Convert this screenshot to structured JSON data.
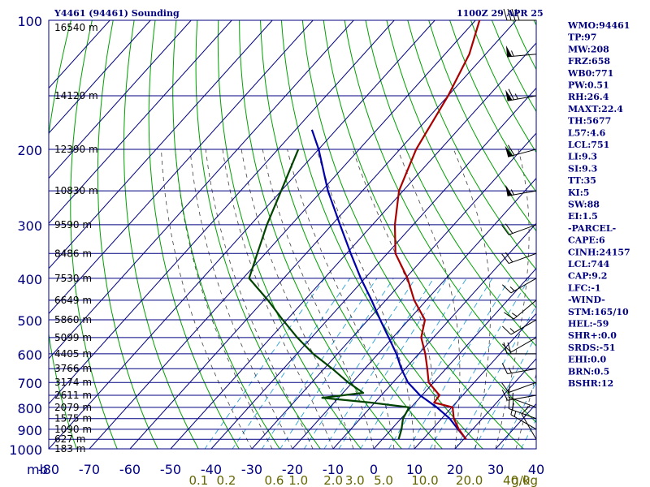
{
  "header": {
    "station": "Y4461 (94461) Sounding",
    "time": "1100Z 29 APR 25"
  },
  "colors": {
    "frame": "#000080",
    "isotherm": "#000080",
    "dry_adiabat": "#00a000",
    "moist_adiabat": "#000000",
    "mixing_ratio": "#2aa0d8",
    "temperature": "#aa0000",
    "dewpoint": "#004400",
    "parcel": "#0000aa",
    "axis_text": "#000080",
    "mixing_text": "#666600"
  },
  "chart_data": {
    "type": "line",
    "title": "Y4461 (94461) Sounding",
    "valid_time": "1100Z 29 APR 25",
    "xlim": [
      -80,
      40
    ],
    "ylim": [
      1000,
      100
    ],
    "x_tick_labels": [
      "-80",
      "-70",
      "-60",
      "-50",
      "-40",
      "-30",
      "-20",
      "-10",
      "0",
      "10",
      "20",
      "30",
      "40"
    ],
    "pressure_ticks": [
      {
        "p": 100,
        "label": "100"
      },
      {
        "p": 200,
        "label": "200"
      },
      {
        "p": 300,
        "label": "300"
      },
      {
        "p": 400,
        "label": "400"
      },
      {
        "p": 500,
        "label": "500"
      },
      {
        "p": 600,
        "label": "600"
      },
      {
        "p": 700,
        "label": "700"
      },
      {
        "p": 800,
        "label": "800"
      },
      {
        "p": 900,
        "label": "900"
      },
      {
        "p": 1000,
        "label": "1000"
      }
    ],
    "pressure_unit": "mb",
    "mixing_ratio_unit": "g/kg",
    "height_labels": [
      {
        "p": 104,
        "label": "16540 m"
      },
      {
        "p": 150,
        "label": "14120 m"
      },
      {
        "p": 200,
        "label": "12390 m"
      },
      {
        "p": 250,
        "label": "10830 m"
      },
      {
        "p": 300,
        "label": "9590 m"
      },
      {
        "p": 350,
        "label": "8486 m"
      },
      {
        "p": 400,
        "label": "7530 m"
      },
      {
        "p": 450,
        "label": "6649 m"
      },
      {
        "p": 500,
        "label": "5860 m"
      },
      {
        "p": 550,
        "label": "5099 m"
      },
      {
        "p": 600,
        "label": "4405 m"
      },
      {
        "p": 650,
        "label": "3766 m"
      },
      {
        "p": 700,
        "label": "3174 m"
      },
      {
        "p": 750,
        "label": "2611 m"
      },
      {
        "p": 800,
        "label": "2079 m"
      },
      {
        "p": 850,
        "label": "1575 m"
      },
      {
        "p": 900,
        "label": "1090 m"
      },
      {
        "p": 950,
        "label": "627 m"
      },
      {
        "p": 1000,
        "label": "183 m"
      }
    ],
    "mixing_ratio_labels": [
      {
        "value": 0.1,
        "label": "0.1"
      },
      {
        "value": 0.2,
        "label": "0.2"
      },
      {
        "value": 0.6,
        "label": "0.6"
      },
      {
        "value": 1.0,
        "label": "1.0"
      },
      {
        "value": 2.0,
        "label": "2.0"
      },
      {
        "value": 3.0,
        "label": "3.0"
      },
      {
        "value": 5.0,
        "label": "5.0"
      },
      {
        "value": 10.0,
        "label": "10.0"
      },
      {
        "value": 20.0,
        "label": "20.0"
      },
      {
        "value": 40.0,
        "label": "40.0"
      }
    ],
    "series": [
      {
        "name": "temperature",
        "points": [
          [
            950,
            20.6
          ],
          [
            900,
            16.6
          ],
          [
            850,
            13.0
          ],
          [
            800,
            10.2
          ],
          [
            780,
            4.6
          ],
          [
            750,
            4.3
          ],
          [
            700,
            -1.2
          ],
          [
            650,
            -4.6
          ],
          [
            600,
            -8.4
          ],
          [
            550,
            -13.0
          ],
          [
            500,
            -16.0
          ],
          [
            450,
            -23.0
          ],
          [
            400,
            -29.5
          ],
          [
            350,
            -38.0
          ],
          [
            300,
            -44.5
          ],
          [
            250,
            -51.0
          ],
          [
            200,
            -56.0
          ],
          [
            150,
            -60.0
          ],
          [
            120,
            -64.0
          ],
          [
            100,
            -69.0
          ]
        ]
      },
      {
        "name": "dewpoint",
        "points": [
          [
            950,
            4.0
          ],
          [
            900,
            2.5
          ],
          [
            850,
            0.5
          ],
          [
            800,
            -0.5
          ],
          [
            780,
            -11.0
          ],
          [
            760,
            -24.0
          ],
          [
            740,
            -15.0
          ],
          [
            700,
            -21.0
          ],
          [
            650,
            -28.0
          ],
          [
            600,
            -36.0
          ],
          [
            550,
            -43.5
          ],
          [
            500,
            -51.0
          ],
          [
            450,
            -59.0
          ],
          [
            400,
            -68.5
          ],
          [
            350,
            -72.0
          ],
          [
            300,
            -76.0
          ],
          [
            250,
            -80.0
          ],
          [
            200,
            -85.0
          ]
        ]
      },
      {
        "name": "parcel",
        "points": [
          [
            950,
            20.6
          ],
          [
            900,
            16.4
          ],
          [
            850,
            12.0
          ],
          [
            800,
            6.3
          ],
          [
            750,
            -0.5
          ],
          [
            700,
            -6.3
          ],
          [
            650,
            -11.0
          ],
          [
            600,
            -15.5
          ],
          [
            550,
            -21.0
          ],
          [
            500,
            -27.0
          ],
          [
            450,
            -33.5
          ],
          [
            400,
            -41.0
          ],
          [
            350,
            -49.0
          ],
          [
            300,
            -58.0
          ],
          [
            250,
            -68.5
          ],
          [
            200,
            -80.0
          ],
          [
            180,
            -86.0
          ]
        ]
      }
    ],
    "wind_barbs": [
      {
        "p": 950,
        "dir": 330,
        "speed_kt": 10
      },
      {
        "p": 900,
        "dir": 300,
        "speed_kt": 15
      },
      {
        "p": 850,
        "dir": 290,
        "speed_kt": 20
      },
      {
        "p": 800,
        "dir": 290,
        "speed_kt": 15
      },
      {
        "p": 750,
        "dir": 260,
        "speed_kt": 10
      },
      {
        "p": 700,
        "dir": 250,
        "speed_kt": 10
      },
      {
        "p": 650,
        "dir": 260,
        "speed_kt": 15
      },
      {
        "p": 600,
        "dir": 270,
        "speed_kt": 20
      },
      {
        "p": 550,
        "dir": 240,
        "speed_kt": 10
      },
      {
        "p": 500,
        "dir": 240,
        "speed_kt": 15
      },
      {
        "p": 450,
        "dir": 230,
        "speed_kt": 15
      },
      {
        "p": 400,
        "dir": 240,
        "speed_kt": 15
      },
      {
        "p": 350,
        "dir": 250,
        "speed_kt": 20
      },
      {
        "p": 300,
        "dir": 250,
        "speed_kt": 20
      },
      {
        "p": 250,
        "dir": 260,
        "speed_kt": 55
      },
      {
        "p": 200,
        "dir": 255,
        "speed_kt": 60
      },
      {
        "p": 150,
        "dir": 260,
        "speed_kt": 65
      },
      {
        "p": 120,
        "dir": 265,
        "speed_kt": 55
      },
      {
        "p": 100,
        "dir": 270,
        "speed_kt": 40
      }
    ]
  },
  "indices": [
    "WMO:94461",
    "TP:97",
    "MW:208",
    "FRZ:658",
    "WB0:771",
    "PW:0.51",
    "RH:26.4",
    "MAXT:22.4",
    "TH:5677",
    "L57:4.6",
    "LCL:751",
    "LI:9.3",
    "SI:9.3",
    "TT:35",
    "KI:5",
    "SW:88",
    "EI:1.5",
    "-PARCEL-",
    "CAPE:6",
    "CINH:24157",
    "LCL:744",
    "CAP:9.2",
    "LFC:-1",
    "-WIND-",
    "STM:165/10",
    "HEL:-59",
    "SHR+:0.0",
    "SRDS:-51",
    "EHI:0.0",
    "BRN:0.5",
    "BSHR:12"
  ]
}
